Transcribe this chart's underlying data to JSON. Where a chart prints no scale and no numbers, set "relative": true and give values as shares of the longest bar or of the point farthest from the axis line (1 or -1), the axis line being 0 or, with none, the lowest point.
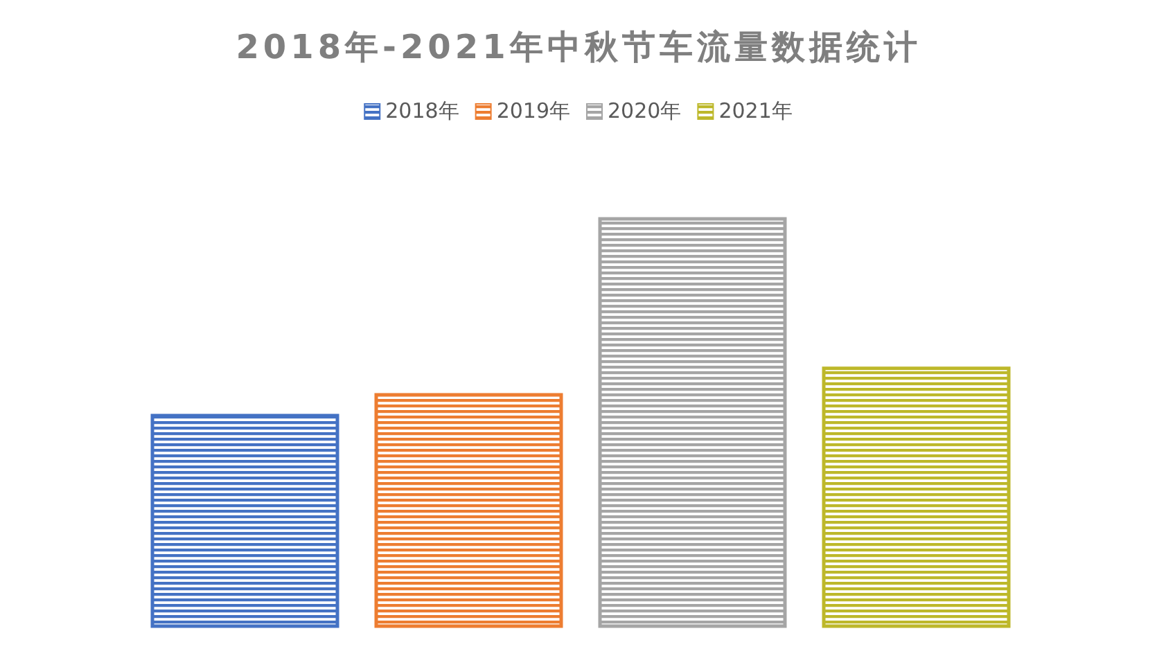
{
  "chart_data": {
    "type": "bar",
    "title": "2018年-2021年中秋节车流量数据统计",
    "relative": true,
    "categories": [
      null
    ],
    "legend": "top",
    "series": [
      {
        "name": "2018年",
        "color": "#4472c4",
        "values": [
          0.517
        ]
      },
      {
        "name": "2019年",
        "color": "#ed7d31",
        "values": [
          0.568
        ]
      },
      {
        "name": "2020年",
        "color": "#a5a5a5",
        "values": [
          1
        ]
      },
      {
        "name": "2021年",
        "color": "#bdb82a",
        "values": [
          0.633
        ]
      }
    ]
  }
}
